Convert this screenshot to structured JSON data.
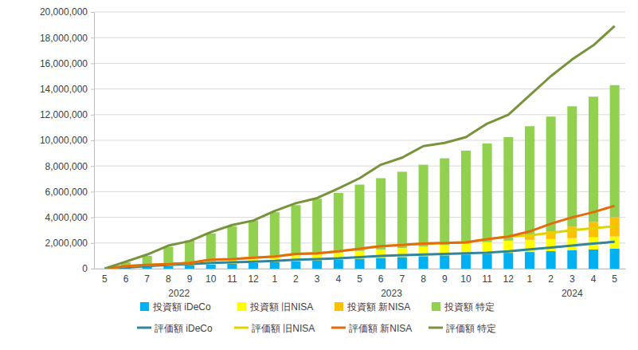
{
  "chart_data": {
    "type": "bar",
    "stacked": true,
    "grid": true,
    "legend": "bottom",
    "categories": [
      "5",
      "6",
      "7",
      "8",
      "9",
      "10",
      "11",
      "12",
      "1",
      "2",
      "3",
      "4",
      "5",
      "6",
      "7",
      "8",
      "9",
      "10",
      "11",
      "12",
      "1",
      "2",
      "3",
      "4",
      "5"
    ],
    "category_groups": [
      {
        "label": "2022",
        "count": 8
      },
      {
        "label": "2023",
        "count": 12
      },
      {
        "label": "2024",
        "count": 5
      }
    ],
    "ylim": [
      0,
      20000000
    ],
    "yticks": [
      0,
      {
        "value": 2000000,
        "label": "2,000,000"
      },
      {
        "value": 4000000,
        "label": "4,000,000"
      },
      {
        "value": 6000000,
        "label": "6,000,000"
      },
      {
        "value": 8000000,
        "label": "8,000,000"
      },
      {
        "value": 10000000,
        "label": "10,000,000"
      },
      {
        "value": 12000000,
        "label": "12,000,000"
      },
      {
        "value": 14000000,
        "label": "14,000,000"
      },
      {
        "value": 16000000,
        "label": "16,000,000"
      },
      {
        "value": 18000000,
        "label": "18,000,000"
      },
      {
        "value": 20000000,
        "label": "20,000,000"
      }
    ],
    "series": [
      {
        "name": "投資額 iDeCo",
        "type": "bar",
        "color": "#00b0f0",
        "values": [
          0,
          65000,
          130000,
          195000,
          260000,
          325000,
          390000,
          455000,
          520000,
          585000,
          650000,
          715000,
          780000,
          845000,
          910000,
          975000,
          1040000,
          1105000,
          1170000,
          1235000,
          1300000,
          1365000,
          1430000,
          1495000,
          1560000
        ]
      },
      {
        "name": "投資額 旧NISA",
        "type": "bar",
        "color": "#ffff00",
        "values": [
          0,
          50000,
          100000,
          150000,
          200000,
          250000,
          300000,
          350000,
          400000,
          450000,
          500000,
          550000,
          600000,
          650000,
          700000,
          750000,
          800000,
          850000,
          900000,
          950000,
          950000,
          950000,
          950000,
          950000,
          950000
        ]
      },
      {
        "name": "投資額 新NISA",
        "type": "bar",
        "color": "#ffc000",
        "values": [
          0,
          0,
          0,
          0,
          0,
          0,
          0,
          0,
          0,
          0,
          0,
          0,
          0,
          0,
          0,
          0,
          0,
          0,
          0,
          0,
          300000,
          600000,
          900000,
          1200000,
          1500000
        ]
      },
      {
        "name": "投資額 特定",
        "type": "bar",
        "color": "#92d050",
        "values": [
          0,
          385000,
          770000,
          1355000,
          1740000,
          2175000,
          2610000,
          2945000,
          3480000,
          3915000,
          4300000,
          4635000,
          5170000,
          5555000,
          5940000,
          6375000,
          6760000,
          7245000,
          7680000,
          8065000,
          8550000,
          8935000,
          9370000,
          9755000,
          10290000
        ]
      },
      {
        "name": "評価額 iDeCo",
        "type": "line",
        "color": "#31859c",
        "values": [
          0,
          100000,
          200000,
          300000,
          350000,
          450000,
          500000,
          550000,
          600000,
          700000,
          750000,
          800000,
          900000,
          1000000,
          1050000,
          1100000,
          1150000,
          1200000,
          1250000,
          1350000,
          1500000,
          1650000,
          1800000,
          1950000,
          2100000
        ]
      },
      {
        "name": "評価額 旧NISA",
        "type": "line",
        "color": "#e0d400",
        "values": [
          0,
          100000,
          100000,
          50000,
          100000,
          250000,
          250000,
          300000,
          350000,
          450000,
          450000,
          550000,
          650000,
          750000,
          800000,
          850000,
          850000,
          850000,
          1050000,
          1150000,
          1100000,
          1150000,
          1200000,
          1200000,
          1200000
        ]
      },
      {
        "name": "評価額 新NISA",
        "type": "line",
        "color": "#e46c0a",
        "values": [
          0,
          0,
          0,
          0,
          0,
          0,
          0,
          0,
          0,
          0,
          0,
          0,
          0,
          0,
          0,
          0,
          0,
          0,
          0,
          0,
          300000,
          700000,
          1000000,
          1250000,
          1600000
        ]
      },
      {
        "name": "評価額 特定",
        "type": "line",
        "color": "#77933c",
        "values": [
          0,
          350000,
          800000,
          1450000,
          1700000,
          2150000,
          2650000,
          2900000,
          3550000,
          3950000,
          4300000,
          4900000,
          5500000,
          6350000,
          6800000,
          7600000,
          7800000,
          8200000,
          9000000,
          9500000,
          10600000,
          11500000,
          12300000,
          13000000,
          14000000
        ]
      }
    ]
  }
}
